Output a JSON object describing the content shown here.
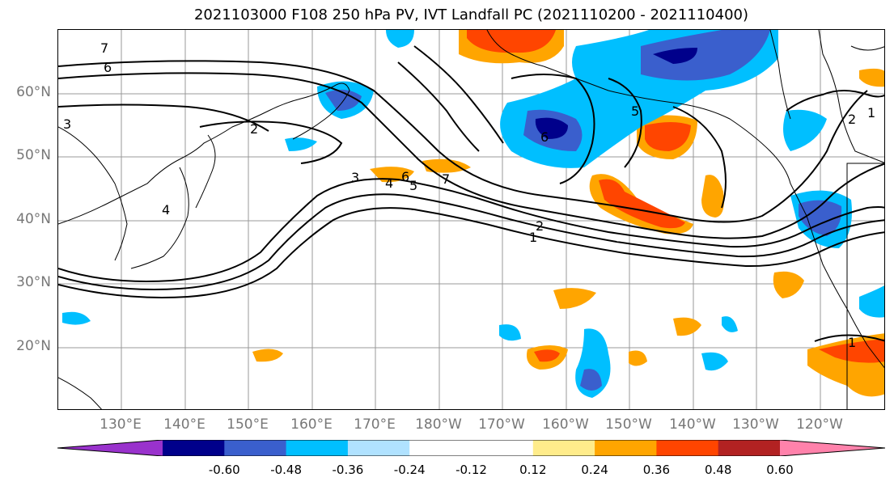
{
  "title": "2021103000 F108 250 hPa PV, IVT Landfall PC (2021110200 - 2021110400)",
  "lat_labels": [
    "60°N",
    "50°N",
    "40°N",
    "30°N",
    "20°N"
  ],
  "lon_labels": [
    "130°E",
    "140°E",
    "150°E",
    "160°E",
    "170°E",
    "180°W",
    "170°W",
    "160°W",
    "150°W",
    "140°W",
    "130°W",
    "120°W"
  ],
  "colorbar": {
    "colors": [
      "#9932cc",
      "#00008b",
      "#3a5fcd",
      "#00bfff",
      "#b0e2ff",
      "#ffffff",
      "#ffffff",
      "#ffec8b",
      "#ffa500",
      "#ff4500",
      "#b22222",
      "#ff82ab"
    ],
    "tick_labels": [
      "-0.60",
      "-0.48",
      "-0.36",
      "-0.24",
      "-0.12",
      "0.12",
      "0.24",
      "0.36",
      "0.48",
      "0.60"
    ]
  },
  "contour_labels": [
    "7",
    "6",
    "2",
    "3",
    "4",
    "5",
    "6",
    "7",
    "2",
    "1",
    "5",
    "6",
    "1",
    "2",
    "1",
    "3",
    "4"
  ]
}
